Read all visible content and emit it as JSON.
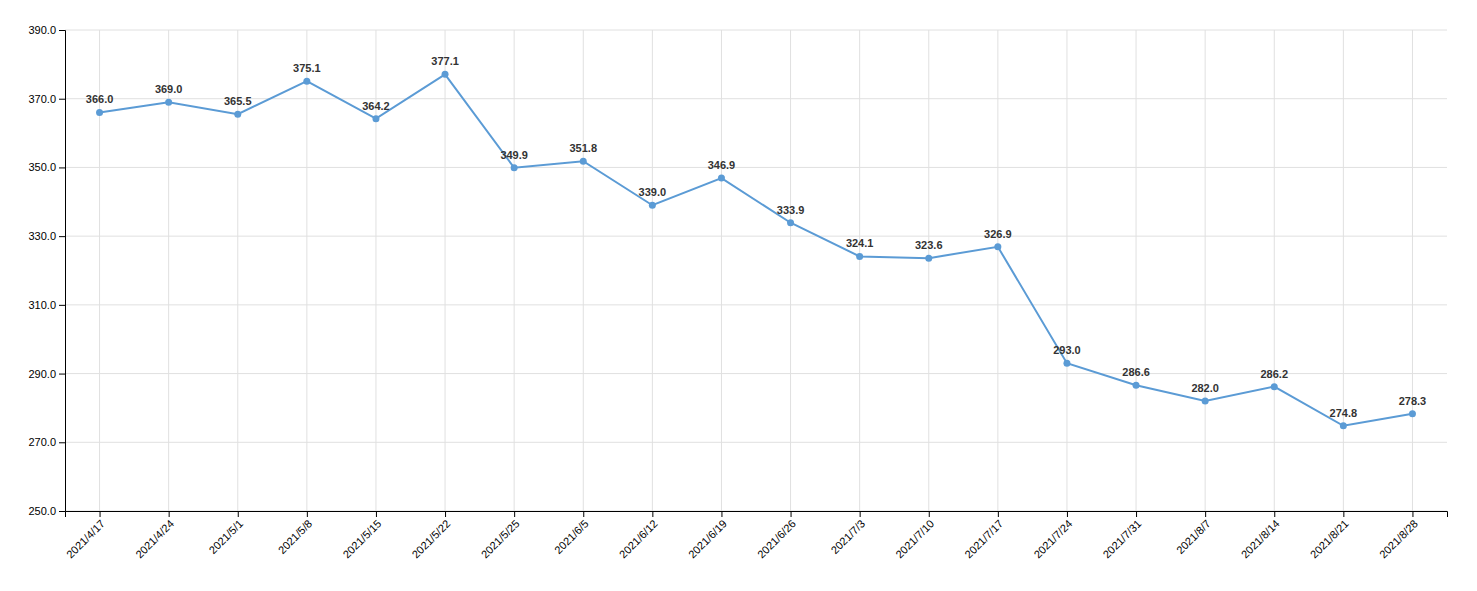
{
  "chart_data": {
    "type": "line",
    "categories": [
      "2021/4/17",
      "2021/4/24",
      "2021/5/1",
      "2021/5/8",
      "2021/5/15",
      "2021/5/22",
      "2021/5/25",
      "2021/6/5",
      "2021/6/12",
      "2021/6/19",
      "2021/6/26",
      "2021/7/3",
      "2021/7/10",
      "2021/7/17",
      "2021/7/24",
      "2021/7/31",
      "2021/8/7",
      "2021/8/14",
      "2021/8/21",
      "2021/8/28"
    ],
    "values": [
      366.0,
      369.0,
      365.5,
      375.1,
      364.2,
      377.1,
      349.9,
      351.8,
      339.0,
      346.9,
      333.9,
      324.1,
      323.6,
      326.9,
      293.0,
      286.6,
      282.0,
      286.2,
      274.8,
      278.3
    ],
    "value_labels": [
      "366.0",
      "369.0",
      "365.5",
      "375.1",
      "364.2",
      "377.1",
      "349.9",
      "351.8",
      "339.0",
      "346.9",
      "333.9",
      "324.1",
      "323.6",
      "326.9",
      "293.0",
      "286.6",
      "282.0",
      "286.2",
      "274.8",
      "278.3"
    ],
    "color": "#5b9bd5",
    "marker": "circle",
    "data_labels": true,
    "ylim": [
      250.0,
      390.0
    ],
    "yticks": [
      {
        "value": 250.0,
        "label": "250.0"
      },
      {
        "value": 270.0,
        "label": "270.0"
      },
      {
        "value": 290.0,
        "label": "290.0"
      },
      {
        "value": 310.0,
        "label": "310.0"
      },
      {
        "value": 330.0,
        "label": "330.0"
      },
      {
        "value": 350.0,
        "label": "350.0"
      },
      {
        "value": 370.0,
        "label": "370.0"
      },
      {
        "value": 390.0,
        "label": "390.0"
      }
    ],
    "grid": true
  }
}
